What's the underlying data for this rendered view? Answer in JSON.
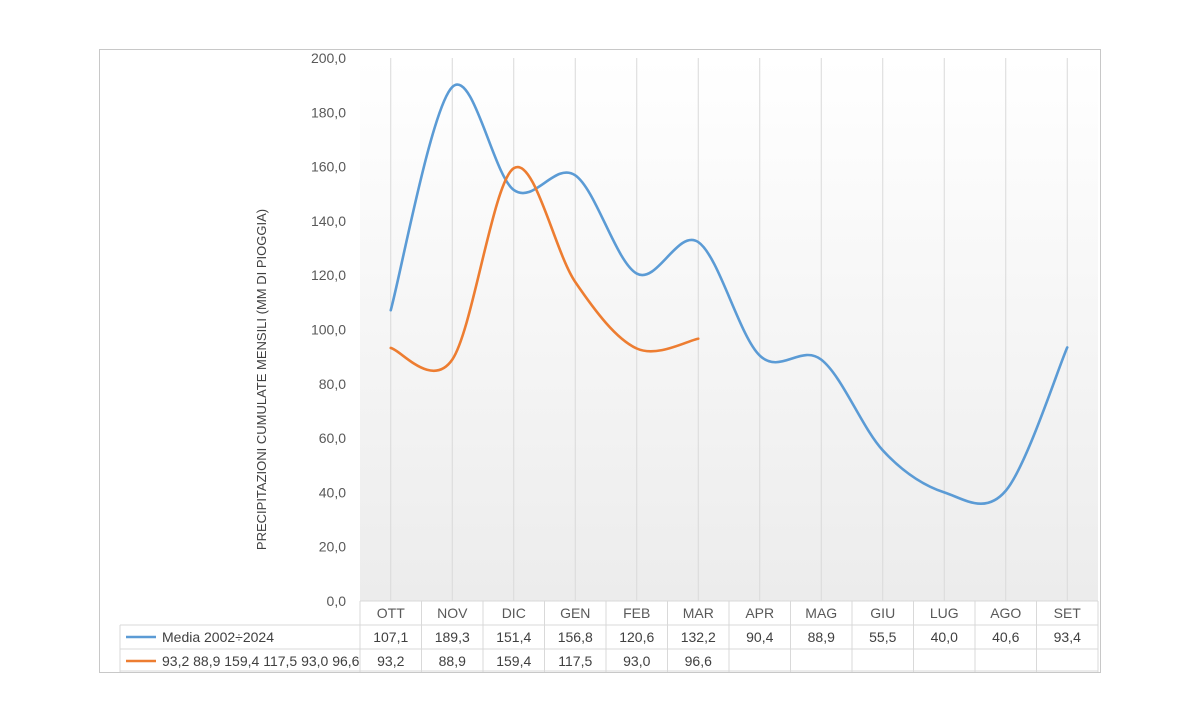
{
  "chart_data": {
    "type": "line",
    "ylabel": "PRECIPITAZIONI CUMULATE MENSILI (MM DI PIOGGIA)",
    "ylim": [
      0,
      200
    ],
    "y_ticks": [
      "0,0",
      "20,0",
      "40,0",
      "60,0",
      "80,0",
      "100,0",
      "120,0",
      "140,0",
      "160,0",
      "180,0",
      "200,0"
    ],
    "categories": [
      "OTT",
      "NOV",
      "DIC",
      "GEN",
      "FEB",
      "MAR",
      "APR",
      "MAG",
      "GIU",
      "LUG",
      "AGO",
      "SET"
    ],
    "smooth": true,
    "grid": "vertical",
    "legend": "data-table",
    "series": [
      {
        "name": "Media 2002÷2024",
        "color": "#5B9BD5",
        "values": [
          107.1,
          189.3,
          151.4,
          156.8,
          120.6,
          132.2,
          90.4,
          88.9,
          55.5,
          40.0,
          40.6,
          93.4
        ],
        "labels": [
          "107,1",
          "189,3",
          "151,4",
          "156,8",
          "120,6",
          "132,2",
          "90,4",
          "88,9",
          "55,5",
          "40,0",
          "40,6",
          "93,4"
        ]
      },
      {
        "name": "93,2 88,9 159,4 117,5 93,0 96,6",
        "color": "#ED7D31",
        "values": [
          93.2,
          88.9,
          159.4,
          117.5,
          93.0,
          96.6,
          null,
          null,
          null,
          null,
          null,
          null
        ],
        "labels": [
          "93,2",
          "88,9",
          "159,4",
          "117,5",
          "93,0",
          "96,6",
          "",
          "",
          "",
          "",
          "",
          ""
        ]
      }
    ]
  }
}
